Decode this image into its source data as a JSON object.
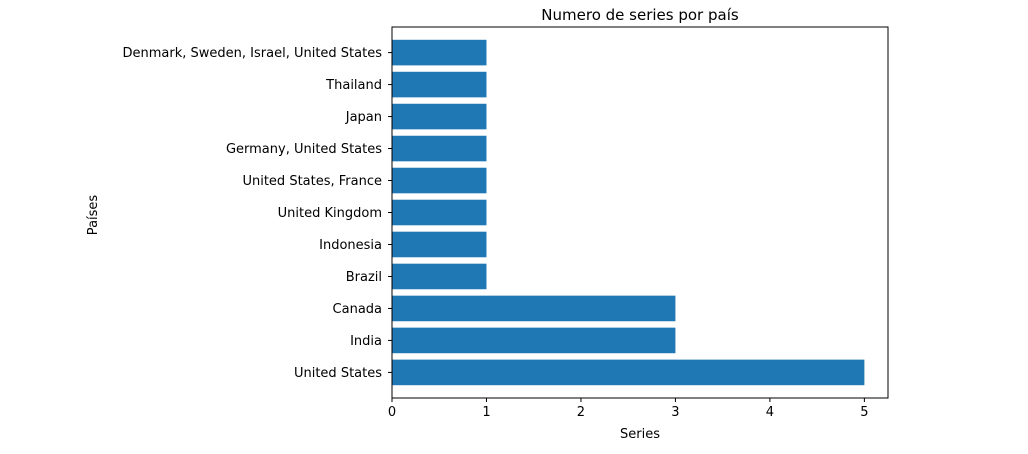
{
  "chart_data": {
    "type": "bar",
    "orientation": "horizontal",
    "title": "Numero de series por país",
    "xlabel": "Series",
    "ylabel": "Países",
    "categories": [
      "United States",
      "India",
      "Canada",
      "Brazil",
      "Indonesia",
      "United Kingdom",
      "United States, France",
      "Germany, United States",
      "Japan",
      "Thailand",
      "Denmark, Sweden, Israel, United States"
    ],
    "values": [
      5,
      3,
      3,
      1,
      1,
      1,
      1,
      1,
      1,
      1,
      1
    ],
    "xlim": [
      0,
      5.25
    ],
    "xticks": [
      0,
      1,
      2,
      3,
      4,
      5
    ],
    "grid": false,
    "bar_color": "#1f77b4"
  }
}
